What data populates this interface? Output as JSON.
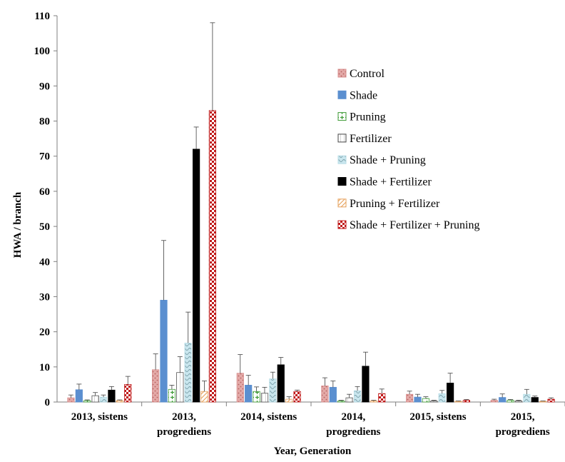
{
  "chart_data": {
    "type": "bar",
    "title": "",
    "xlabel": "Year, Generation",
    "ylabel": "HWA / branch",
    "ylim": [
      0,
      110
    ],
    "yticks": [
      0,
      10,
      20,
      30,
      40,
      50,
      60,
      70,
      80,
      90,
      100,
      110
    ],
    "grid": false,
    "legend_position": "top-right",
    "categories": [
      [
        "2013, sistens"
      ],
      [
        "2013,",
        "progrediens"
      ],
      [
        "2014, sistens"
      ],
      [
        "2014,",
        "progrediens"
      ],
      [
        "2015, sistens"
      ],
      [
        "2015,",
        "progrediens"
      ]
    ],
    "series": [
      {
        "name": "Control",
        "color": "#d9908f",
        "pattern": "dots",
        "values": [
          1.2,
          9.2,
          8.2,
          4.6,
          2.2,
          0.5
        ],
        "errors": [
          0.8,
          4.5,
          5.3,
          2.3,
          0.9,
          0.3
        ]
      },
      {
        "name": "Shade",
        "color": "#5b8fd0",
        "pattern": "solid",
        "values": [
          3.5,
          29.0,
          4.8,
          4.2,
          1.4,
          1.3
        ],
        "errors": [
          1.6,
          17.0,
          2.8,
          1.8,
          0.8,
          1.0
        ]
      },
      {
        "name": "Pruning",
        "color": "#3c9a34",
        "pattern": "plus",
        "values": [
          0.4,
          3.6,
          3.0,
          0.3,
          1.0,
          0.5
        ],
        "errors": [
          0.2,
          1.2,
          1.3,
          0.2,
          0.5,
          0.2
        ]
      },
      {
        "name": "Fertilizer",
        "color": "#ffffff",
        "pattern": "vlines",
        "values": [
          1.8,
          8.4,
          2.5,
          1.2,
          0.3,
          0.3
        ],
        "errors": [
          0.9,
          4.5,
          1.7,
          1.0,
          0.2,
          0.2
        ]
      },
      {
        "name": "Shade + Pruning",
        "color": "#b8dde6",
        "pattern": "waves",
        "values": [
          1.4,
          16.8,
          6.6,
          3.2,
          2.4,
          2.2
        ],
        "errors": [
          0.6,
          8.8,
          1.9,
          1.2,
          0.9,
          1.4
        ]
      },
      {
        "name": "Shade + Fertilizer",
        "color": "#000000",
        "pattern": "solid",
        "values": [
          3.4,
          72.0,
          10.6,
          10.2,
          5.4,
          1.3
        ],
        "errors": [
          1.0,
          6.3,
          2.1,
          4.0,
          2.8,
          0.4
        ]
      },
      {
        "name": "Pruning + Fertilizer",
        "color": "#e6a05a",
        "pattern": "diag",
        "values": [
          0.4,
          3.0,
          0.8,
          0.3,
          0.2,
          0.2
        ],
        "errors": [
          0.2,
          3.0,
          0.7,
          0.2,
          0.1,
          0.1
        ]
      },
      {
        "name": "Shade + Fertilizer + Pruning",
        "color": "#c01a1a",
        "pattern": "checker",
        "values": [
          5.0,
          83.0,
          3.0,
          2.4,
          0.5,
          0.8
        ],
        "errors": [
          2.3,
          25.0,
          0.4,
          1.3,
          0.2,
          0.4
        ]
      }
    ]
  }
}
